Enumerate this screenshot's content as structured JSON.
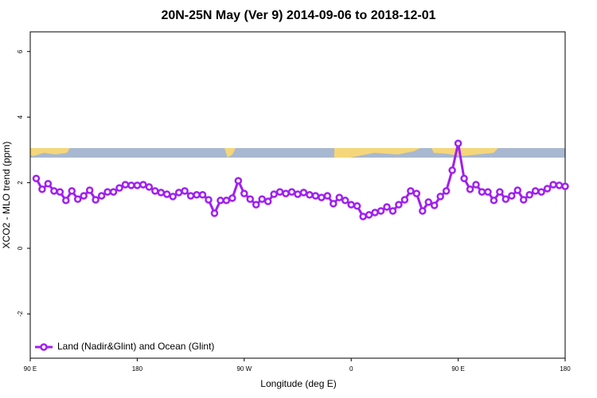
{
  "chart_data": {
    "type": "line",
    "title": "20N-25N May (Ver 9)   2014-09-06 to 2018-12-01",
    "xlabel": "Longitude (deg E)",
    "ylabel": "XCO2 - MLO trend (ppm)",
    "x": [
      95,
      100,
      105,
      110,
      115,
      120,
      125,
      130,
      135,
      140,
      145,
      150,
      155,
      160,
      165,
      170,
      175,
      180,
      185,
      190,
      195,
      200,
      205,
      210,
      215,
      220,
      225,
      230,
      235,
      240,
      245,
      250,
      255,
      260,
      265,
      270,
      275,
      280,
      285,
      290,
      295,
      300,
      305,
      310,
      315,
      320,
      325,
      330,
      335,
      340,
      345,
      350,
      355,
      360,
      365,
      370,
      375,
      380,
      385,
      390,
      395,
      400,
      405,
      410,
      415,
      420,
      425,
      430,
      435,
      440,
      445,
      450,
      455,
      460,
      465,
      470,
      475,
      480,
      485,
      490,
      495,
      500,
      505,
      510,
      515,
      520,
      525,
      530,
      535,
      540
    ],
    "series": [
      {
        "name": "Land (Nadir&Glint) and Ocean (Glint)",
        "color": "#a020f0",
        "values": [
          2.13,
          1.8,
          1.97,
          1.75,
          1.72,
          1.46,
          1.75,
          1.5,
          1.6,
          1.77,
          1.48,
          1.6,
          1.72,
          1.72,
          1.84,
          1.94,
          1.92,
          1.92,
          1.94,
          1.87,
          1.75,
          1.7,
          1.65,
          1.58,
          1.7,
          1.75,
          1.6,
          1.63,
          1.63,
          1.48,
          1.07,
          1.46,
          1.46,
          1.53,
          2.06,
          1.67,
          1.5,
          1.33,
          1.5,
          1.43,
          1.65,
          1.72,
          1.67,
          1.72,
          1.65,
          1.7,
          1.63,
          1.6,
          1.55,
          1.6,
          1.36,
          1.55,
          1.46,
          1.33,
          1.29,
          0.97,
          1.02,
          1.09,
          1.14,
          1.26,
          1.14,
          1.33,
          1.48,
          1.75,
          1.67,
          1.14,
          1.41,
          1.31,
          1.58,
          1.75,
          2.38,
          3.2,
          2.13,
          1.8,
          1.94,
          1.72,
          1.72,
          1.46,
          1.72,
          1.5,
          1.6,
          1.77,
          1.48,
          1.63,
          1.75,
          1.72,
          1.82,
          1.94,
          1.92,
          1.89
        ]
      }
    ],
    "xlim": [
      90,
      540
    ],
    "xticks": [
      {
        "value": 90,
        "label": "90 E"
      },
      {
        "value": 180,
        "label": "180"
      },
      {
        "value": 270,
        "label": "90 W"
      },
      {
        "value": 360,
        "label": "0"
      },
      {
        "value": 450,
        "label": "90 E"
      },
      {
        "value": 540,
        "label": "180"
      }
    ],
    "ylim": [
      -3.35,
      6.6
    ],
    "yticks": [
      -2,
      0,
      2,
      4,
      6
    ],
    "legend": "bottom-left"
  }
}
